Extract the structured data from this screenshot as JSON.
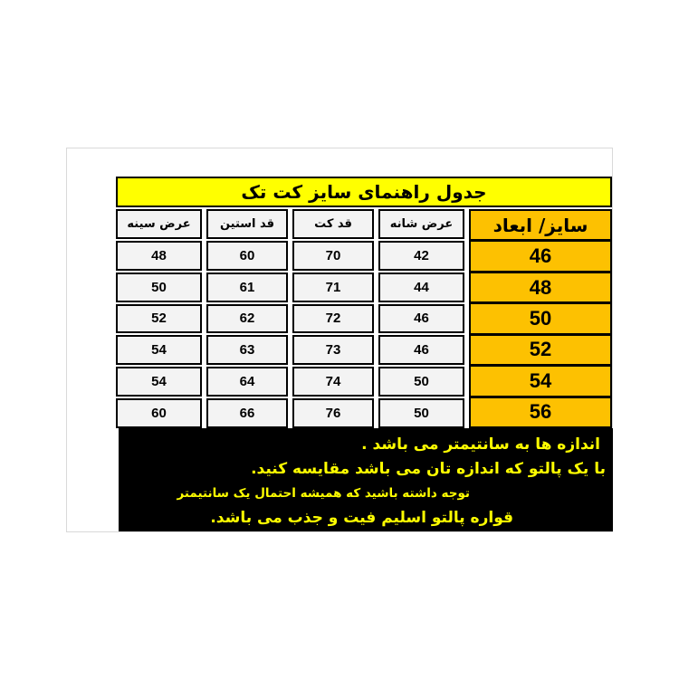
{
  "colors": {
    "title_bg": "#ffff00",
    "size_column_bg": "#fdc101",
    "cell_bg": "#f3f3f3",
    "cell_border": "#000000",
    "footer_bg": "#000000",
    "footer_text": "#ffff00",
    "frame_border": "#d9d9d9"
  },
  "table": {
    "title": "جدول راهنمای سایز کت تک",
    "size_col_header": "سایز/ ابعاد",
    "col_headers": [
      "عرض شانه",
      "قد کت",
      "قد استین",
      "عرض سینه"
    ],
    "rows": [
      {
        "size": "46",
        "cells": [
          "42",
          "70",
          "60",
          "48"
        ]
      },
      {
        "size": "48",
        "cells": [
          "44",
          "71",
          "61",
          "50"
        ]
      },
      {
        "size": "50",
        "cells": [
          "46",
          "72",
          "62",
          "52"
        ]
      },
      {
        "size": "52",
        "cells": [
          "46",
          "73",
          "63",
          "54"
        ]
      },
      {
        "size": "54",
        "cells": [
          "50",
          "74",
          "64",
          "54"
        ]
      },
      {
        "size": "56",
        "cells": [
          "50",
          "76",
          "66",
          "60"
        ]
      }
    ]
  },
  "footer": {
    "lines": [
      "اندازه ها به سانتیمتر می باشد .",
      "با یک پالتو که اندازه تان می باشد مقایسه کنید.",
      "توجه داشته باشید که همیشه احتمال یک سانتیمتر",
      "قواره پالتو اسلیم فیت و جذب می باشد."
    ]
  },
  "chart_data": {
    "type": "table",
    "title": "جدول راهنمای سایز کت تک",
    "columns": [
      "سایز/ ابعاد",
      "عرض شانه",
      "قد کت",
      "قد استین",
      "عرض سینه"
    ],
    "rows": [
      [
        46,
        42,
        70,
        60,
        48
      ],
      [
        48,
        44,
        71,
        61,
        50
      ],
      [
        50,
        46,
        72,
        62,
        52
      ],
      [
        52,
        46,
        73,
        63,
        54
      ],
      [
        54,
        50,
        74,
        64,
        54
      ],
      [
        56,
        50,
        76,
        66,
        60
      ]
    ],
    "units": "cm",
    "notes": [
      "اندازه ها به سانتیمتر می باشد .",
      "با یک پالتو که اندازه تان می باشد مقایسه کنید.",
      "توجه داشته باشید که همیشه احتمال یک سانتیمتر",
      "قواره پالتو اسلیم فیت و جذب می باشد."
    ],
    "layout": {
      "header_bg": "#ffff00",
      "size_column_bg": "#fdc101",
      "direction": "rtl"
    }
  }
}
